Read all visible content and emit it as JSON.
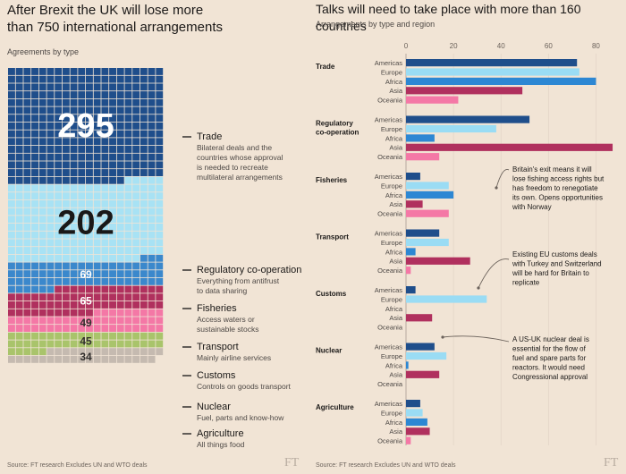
{
  "left": {
    "title_line1": "After Brexit the UK will lose more",
    "title_line2": "than 750 international arrangements",
    "subtitle": "Agreements by type",
    "source": "Source: FT research   Excludes UN and WTO deals"
  },
  "right": {
    "title": "Talks will need to take place with more than 160 countries",
    "subtitle": "Arrangements by type and region",
    "source": "Source: FT research   Excludes UN and WTO deals"
  },
  "ft_logo": "FT",
  "colors": {
    "trade": "#1f4e8b",
    "regulatory": "#a8e2f4",
    "fisheries": "#3b88cc",
    "transport": "#b0305e",
    "customs": "#f478a6",
    "nuclear": "#a9c46b",
    "agriculture": "#c5bab0",
    "americas": "#1f4e8b",
    "europe": "#9adcf4",
    "africa": "#2d87d3",
    "asia": "#b0305e",
    "oceania": "#f478a6"
  },
  "chart_data": [
    {
      "type": "waffle",
      "categories": [
        {
          "key": "trade",
          "value": 295,
          "label": "Trade",
          "description": [
            "Bilateral deals and the",
            "countries whose approval",
            "is needed to recreate",
            "multilateral arrangements"
          ]
        },
        {
          "key": "regulatory",
          "value": 202,
          "label": "Regulatory co-operation",
          "description": [
            "Everything from antifrust",
            "to data sharing"
          ]
        },
        {
          "key": "fisheries",
          "value": 69,
          "label": "Fisheries",
          "description": [
            "Access waters or",
            "sustainable stocks"
          ]
        },
        {
          "key": "transport",
          "value": 65,
          "label": "Transport",
          "description": [
            "Mainly airline services"
          ]
        },
        {
          "key": "customs",
          "value": 49,
          "label": "Customs",
          "description": [
            "Controls on goods transport"
          ]
        },
        {
          "key": "nuclear",
          "value": 45,
          "label": "Nuclear",
          "description": [
            "Fuel, parts and know-how"
          ]
        },
        {
          "key": "agriculture",
          "value": 34,
          "label": "Agriculture",
          "description": [
            "All things food"
          ]
        }
      ]
    },
    {
      "type": "bar",
      "orientation": "horizontal",
      "xlim": [
        0,
        90
      ],
      "xticks": [
        0,
        20,
        40,
        60,
        80
      ],
      "regions": [
        "Americas",
        "Europe",
        "Africa",
        "Asia",
        "Oceania"
      ],
      "groups": [
        {
          "label": [
            "Trade"
          ],
          "values": [
            72,
            73,
            80,
            49,
            22
          ]
        },
        {
          "label": [
            "Regulatory",
            "co-operation"
          ],
          "values": [
            52,
            38,
            12,
            87,
            14
          ]
        },
        {
          "label": [
            "Fisheries"
          ],
          "values": [
            6,
            18,
            20,
            7,
            18
          ]
        },
        {
          "label": [
            "Transport"
          ],
          "values": [
            14,
            18,
            4,
            27,
            2
          ]
        },
        {
          "label": [
            "Customs"
          ],
          "values": [
            4,
            34,
            0,
            11,
            0
          ]
        },
        {
          "label": [
            "Nuclear"
          ],
          "values": [
            12,
            17,
            1,
            14,
            0
          ]
        },
        {
          "label": [
            "Agriculture"
          ],
          "values": [
            6,
            7,
            9,
            10,
            2
          ]
        }
      ],
      "annotations": [
        {
          "text": [
            "Britain's exit means it will",
            "lose fishing access rights but",
            "has freedom to renegotiate",
            "its own. Opens opportunities",
            "with Norway"
          ]
        },
        {
          "text": [
            "Existing EU customs deals",
            "with Turkey and Switzerland",
            "will be hard for Britain to",
            "replicate"
          ]
        },
        {
          "text": [
            "A US-UK nuclear deal is",
            "essential for the flow of",
            "fuel and spare parts for",
            "reactors. It would need",
            "Congressional approval"
          ]
        }
      ]
    }
  ]
}
